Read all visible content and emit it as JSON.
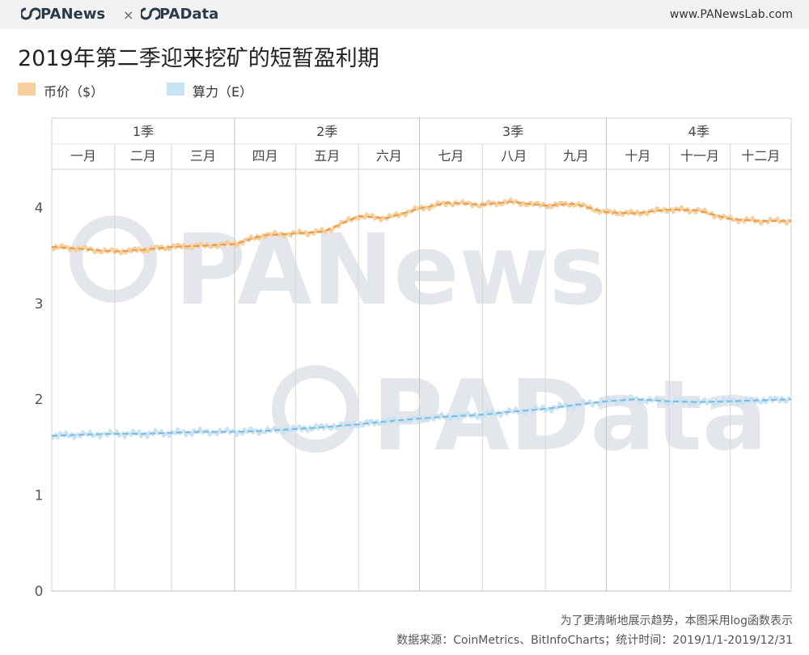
{
  "header": {
    "brand_primary": "PANews",
    "brand_separator": "×",
    "brand_secondary": "PAData",
    "site": "www.PANewsLab.com"
  },
  "watermarks": [
    "PANews",
    "PAData"
  ],
  "chart_data": {
    "type": "line",
    "title": "2019年第二季迎来挖矿的短暂盈利期",
    "xlabel": "",
    "ylabel": "",
    "ylim": [
      0,
      4.4
    ],
    "yticks": [
      0,
      1,
      2,
      3,
      4
    ],
    "grid": false,
    "legend_position": "top-left",
    "quarters": [
      "1季",
      "2季",
      "3季",
      "4季"
    ],
    "categories": [
      "一月",
      "二月",
      "三月",
      "四月",
      "五月",
      "六月",
      "七月",
      "八月",
      "九月",
      "十月",
      "十一月",
      "十二月"
    ],
    "series": [
      {
        "name": "币价（$）",
        "color": "#f5cf9c",
        "trend_color": "#e89a4e",
        "x": [
          "2019-01-01",
          "2019-01-15",
          "2019-02-01",
          "2019-02-15",
          "2019-03-01",
          "2019-03-15",
          "2019-04-01",
          "2019-04-15",
          "2019-05-01",
          "2019-05-15",
          "2019-06-01",
          "2019-06-15",
          "2019-07-01",
          "2019-07-15",
          "2019-08-01",
          "2019-08-15",
          "2019-09-01",
          "2019-09-15",
          "2019-10-01",
          "2019-10-15",
          "2019-11-01",
          "2019-11-15",
          "2019-12-01",
          "2019-12-15",
          "2019-12-31"
        ],
        "values": [
          3.59,
          3.57,
          3.54,
          3.56,
          3.59,
          3.6,
          3.62,
          3.71,
          3.73,
          3.75,
          3.91,
          3.89,
          3.99,
          4.05,
          4.03,
          4.06,
          4.02,
          4.04,
          3.95,
          3.94,
          3.98,
          3.97,
          3.88,
          3.86,
          3.86
        ]
      },
      {
        "name": "算力（E）",
        "color": "#c8e3f3",
        "trend_color": "#7fb8dc",
        "x": [
          "2019-01-01",
          "2019-01-15",
          "2019-02-01",
          "2019-02-15",
          "2019-03-01",
          "2019-03-15",
          "2019-04-01",
          "2019-04-15",
          "2019-05-01",
          "2019-05-15",
          "2019-06-01",
          "2019-06-15",
          "2019-07-01",
          "2019-07-15",
          "2019-08-01",
          "2019-08-15",
          "2019-09-01",
          "2019-09-15",
          "2019-10-01",
          "2019-10-15",
          "2019-11-01",
          "2019-11-15",
          "2019-12-01",
          "2019-12-15",
          "2019-12-31"
        ],
        "values": [
          1.62,
          1.63,
          1.64,
          1.64,
          1.65,
          1.66,
          1.66,
          1.67,
          1.69,
          1.71,
          1.74,
          1.77,
          1.8,
          1.82,
          1.84,
          1.87,
          1.9,
          1.94,
          1.98,
          2.0,
          1.98,
          1.97,
          1.98,
          1.99,
          2.0
        ]
      }
    ]
  },
  "footnote": {
    "line1": "为了更清晰地展示趋势，本图采用log函数表示",
    "line2": "数据来源：CoinMetrics、BitInfoCharts；统计时间：2019/1/1-2019/12/31"
  }
}
